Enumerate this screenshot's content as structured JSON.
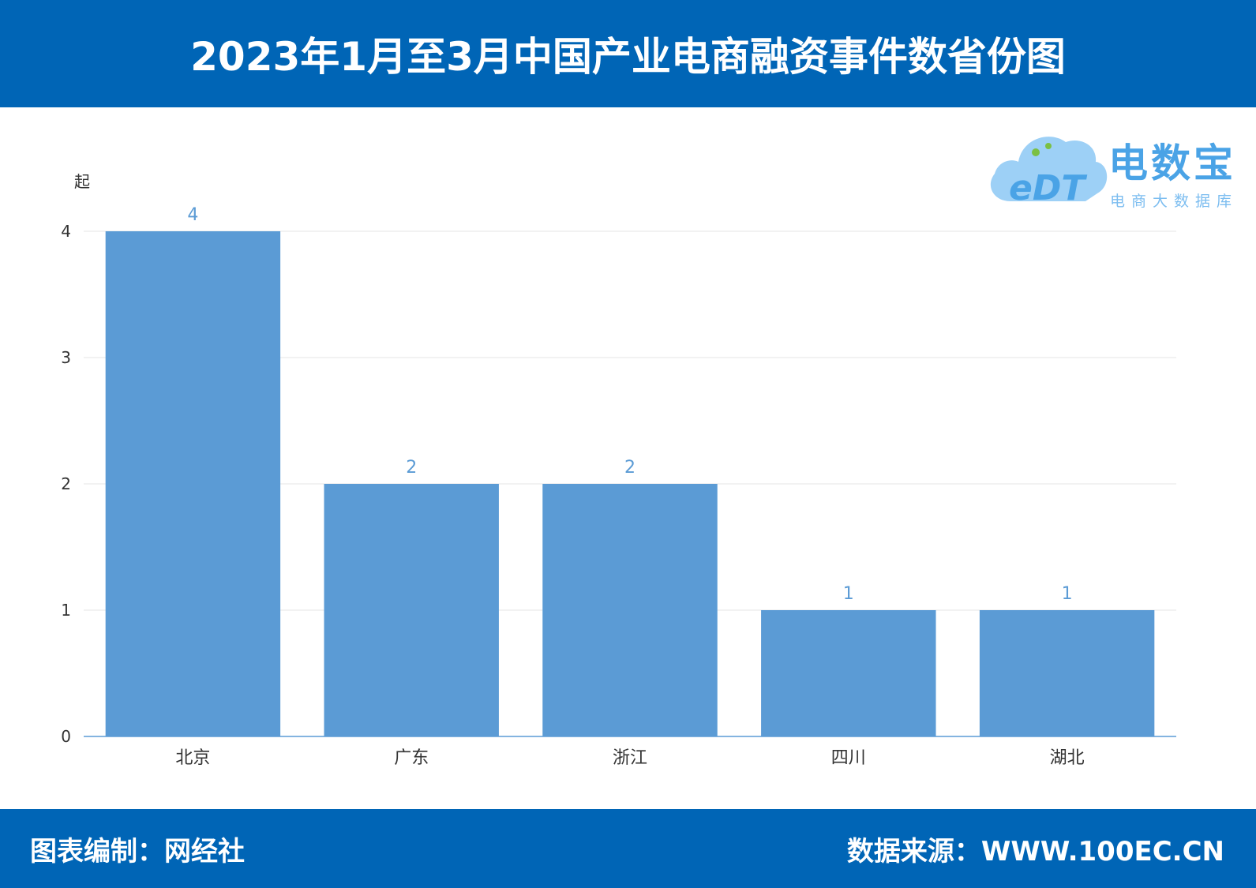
{
  "header": {
    "title": "2023年1月至3月中国产业电商融资事件数省份图"
  },
  "logo": {
    "brand": "电数宝",
    "subtitle": "电商大数据库",
    "mark": "eDT"
  },
  "footer": {
    "left": "图表编制：网经社",
    "right": "数据来源：WWW.100EC.CN"
  },
  "colors": {
    "accent": "#0065B6",
    "bar": "#5B9BD5",
    "grid": "#e6e6e6"
  },
  "chart_data": {
    "type": "bar",
    "title": "2023年1月至3月中国产业电商融资事件数省份图",
    "categories": [
      "北京",
      "广东",
      "浙江",
      "四川",
      "湖北"
    ],
    "values": [
      4,
      2,
      2,
      1,
      1
    ],
    "ylabel": "起",
    "xlabel": "",
    "ylim": [
      0,
      4
    ],
    "yticks": [
      0,
      1,
      2,
      3,
      4
    ],
    "grid": true,
    "data_labels": true
  }
}
